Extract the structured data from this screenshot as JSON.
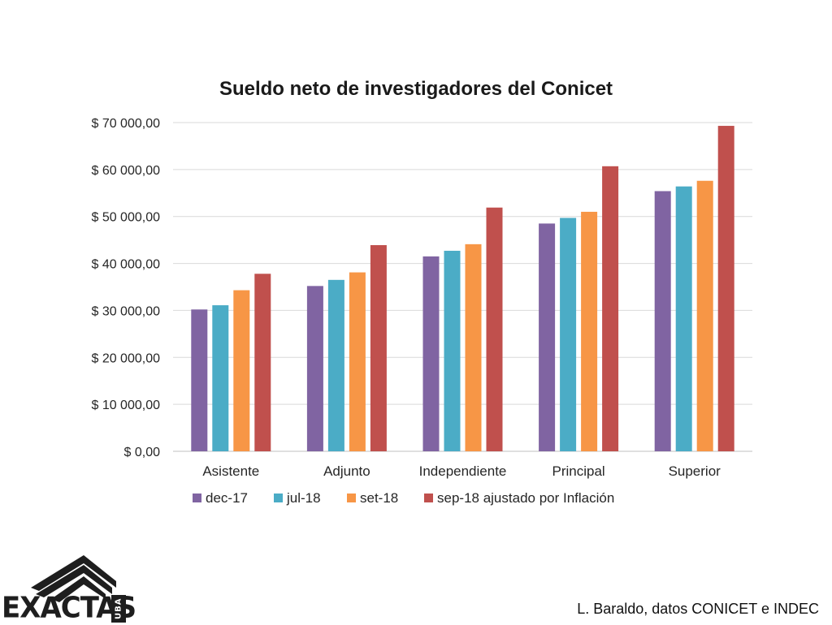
{
  "chart_data": {
    "type": "bar",
    "title": "Sueldo neto de investigadores del Conicet",
    "categories": [
      "Asistente",
      "Adjunto",
      "Independiente",
      "Principal",
      "Superior"
    ],
    "series": [
      {
        "name": "dec-17",
        "color": "#8064A2",
        "values": [
          30200,
          35200,
          41500,
          48500,
          55400
        ]
      },
      {
        "name": "jul-18",
        "color": "#4BACC6",
        "values": [
          31100,
          36500,
          42700,
          49700,
          56400
        ]
      },
      {
        "name": "set-18",
        "color": "#F79646",
        "values": [
          34300,
          38100,
          44100,
          51000,
          57600
        ]
      },
      {
        "name": "sep-18 ajustado por Inflación",
        "color": "#C0504D",
        "values": [
          37800,
          43900,
          51900,
          60700,
          69300
        ]
      }
    ],
    "ylim": [
      0,
      70000
    ],
    "yticks": [
      0,
      10000,
      20000,
      30000,
      40000,
      50000,
      60000,
      70000
    ],
    "ytick_labels": [
      "$ 0,00",
      "$ 10 000,00",
      "$ 20 000,00",
      "$ 30 000,00",
      "$ 40 000,00",
      "$ 50 000,00",
      "$ 60 000,00",
      "$ 70 000,00"
    ],
    "grid": true,
    "legend": "bottom"
  },
  "logo": {
    "text": "EXACTAS",
    "badge": "UBA"
  },
  "credit": "L. Baraldo, datos CONICET e INDEC"
}
